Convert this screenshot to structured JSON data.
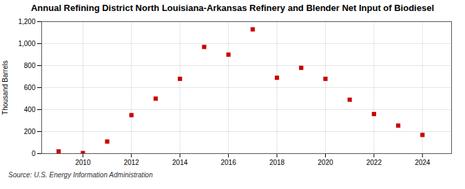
{
  "chart_data": {
    "type": "scatter",
    "title": "Annual Refining District North Louisiana-Arkansas Refinery and Blender Net Input of Biodiesel",
    "ylabel": "Thousand Barrels",
    "source": "Source: U.S. Energy Information Administration",
    "x": [
      2009,
      2010,
      2011,
      2012,
      2013,
      2014,
      2015,
      2016,
      2017,
      2018,
      2019,
      2020,
      2021,
      2022,
      2023,
      2024
    ],
    "values": [
      20,
      5,
      110,
      350,
      500,
      680,
      970,
      900,
      1130,
      690,
      780,
      680,
      490,
      360,
      255,
      170
    ],
    "color": "#cc0000",
    "marker": "square",
    "xlim": [
      2008.3,
      2025.2
    ],
    "xticks": [
      2010,
      2012,
      2014,
      2016,
      2018,
      2020,
      2022,
      2024
    ],
    "ylim": [
      0,
      1200
    ],
    "yticks": [
      0,
      200,
      400,
      600,
      800,
      {
        "value": 1000,
        "label": "1,000"
      },
      {
        "value": 1200,
        "label": "1,200"
      }
    ],
    "grid": true
  }
}
